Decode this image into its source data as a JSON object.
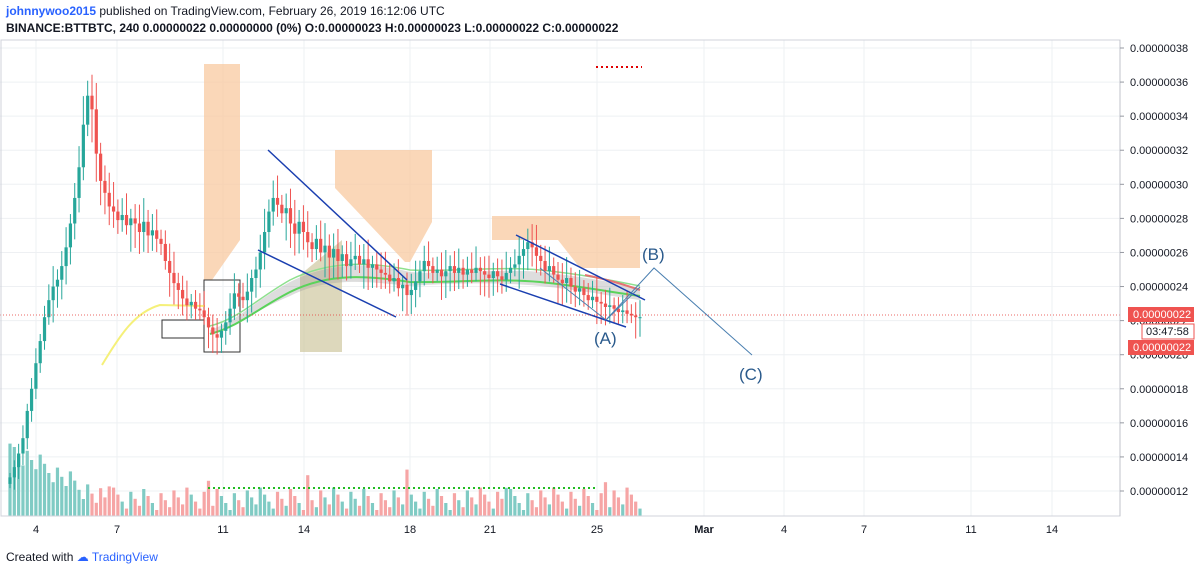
{
  "header": {
    "author": "johnnywoo2015",
    "published": "published on TradingView.com, February 26, 2019 16:12:06 UTC",
    "symbol_line": "BINANCE:BTTBTC, 240  0.00000022  0.00000000 (0%)  O:0.00000023  H:0.00000023  L:0.00000022  C:0.00000022"
  },
  "footer": {
    "created_with": "Created with",
    "brand": "TradingView"
  },
  "chart_data": {
    "type": "candlestick",
    "title": "BINANCE:BTTBTC, 240",
    "ylim": [
      1e-07,
      3.8e-07
    ],
    "x_ticks": [
      "4",
      "7",
      "11",
      "14",
      "18",
      "21",
      "25",
      "Mar",
      "4",
      "7",
      "11",
      "14"
    ],
    "y_ticks": [
      "0.00000038",
      "0.00000036",
      "0.00000034",
      "0.00000032",
      "0.00000030",
      "0.00000028",
      "0.00000026",
      "0.00000024",
      "0.00000022",
      "0.00000020",
      "0.00000018",
      "0.00000016",
      "0.00000014",
      "0.00000012"
    ],
    "last_price_label": "0.00000022",
    "countdown_label": "03:47:58",
    "low_price_label": "0.00000022",
    "annotations": [
      "(A)",
      "(B)",
      "(C)"
    ],
    "close_series": [
      1.28e-07,
      1.34e-07,
      1.42e-07,
      1.51e-07,
      1.67e-07,
      1.8e-07,
      1.95e-07,
      2.08e-07,
      2.22e-07,
      2.32e-07,
      2.4e-07,
      2.44e-07,
      2.52e-07,
      2.63e-07,
      2.77e-07,
      2.92e-07,
      3.1e-07,
      3.35e-07,
      3.52e-07,
      3.44e-07,
      3.18e-07,
      3.02e-07,
      2.95e-07,
      2.87e-07,
      2.84e-07,
      2.79e-07,
      2.82e-07,
      2.76e-07,
      2.8e-07,
      2.77e-07,
      2.72e-07,
      2.78e-07,
      2.7e-07,
      2.73e-07,
      2.68e-07,
      2.65e-07,
      2.55e-07,
      2.48e-07,
      2.42e-07,
      2.38e-07,
      2.33e-07,
      2.29e-07,
      2.31e-07,
      2.27e-07,
      2.26e-07,
      2.22e-07,
      2.16e-07,
      2.12e-07,
      2.1e-07,
      2.14e-07,
      2.19e-07,
      2.27e-07,
      2.36e-07,
      2.34e-07,
      2.32e-07,
      2.37e-07,
      2.45e-07,
      2.5e-07,
      2.6e-07,
      2.72e-07,
      2.84e-07,
      2.92e-07,
      2.88e-07,
      2.83e-07,
      2.86e-07,
      2.77e-07,
      2.71e-07,
      2.78e-07,
      2.72e-07,
      2.66e-07,
      2.62e-07,
      2.68e-07,
      2.6e-07,
      2.64e-07,
      2.57e-07,
      2.62e-07,
      2.55e-07,
      2.59e-07,
      2.52e-07,
      2.56e-07,
      2.58e-07,
      2.53e-07,
      2.56e-07,
      2.51e-07,
      2.53e-07,
      2.5e-07,
      2.48e-07,
      2.47e-07,
      2.43e-07,
      2.45e-07,
      2.39e-07,
      2.41e-07,
      2.35e-07,
      2.38e-07,
      2.43e-07,
      2.49e-07,
      2.55e-07,
      2.52e-07,
      2.48e-07,
      2.5e-07,
      2.46e-07,
      2.49e-07,
      2.52e-07,
      2.48e-07,
      2.51e-07,
      2.47e-07,
      2.5e-07,
      2.48e-07,
      2.51e-07,
      2.49e-07,
      2.47e-07,
      2.45e-07,
      2.49e-07,
      2.46e-07,
      2.44e-07,
      2.48e-07,
      2.51e-07,
      2.53e-07,
      2.58e-07,
      2.62e-07,
      2.66e-07,
      2.63e-07,
      2.58e-07,
      2.55e-07,
      2.49e-07,
      2.52e-07,
      2.47e-07,
      2.44e-07,
      2.42e-07,
      2.45e-07,
      2.4e-07,
      2.37e-07,
      2.39e-07,
      2.35e-07,
      2.32e-07,
      2.34e-07,
      2.31e-07,
      2.3e-07,
      2.28e-07,
      2.29e-07,
      2.27e-07,
      2.25e-07,
      2.26e-07,
      2.24e-07,
      2.23e-07,
      2.22e-07,
      2.22e-07
    ]
  }
}
